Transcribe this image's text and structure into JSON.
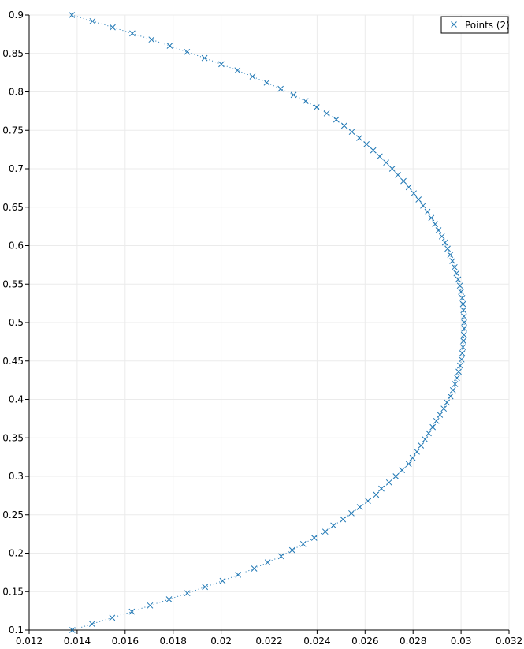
{
  "chart_data": {
    "type": "scatter",
    "grid": true,
    "legend_position": "top-right",
    "xlim": [
      0.012,
      0.032
    ],
    "ylim": [
      0.1,
      0.9
    ],
    "x_ticks": [
      "0.012",
      "0.014",
      "0.016",
      "0.018",
      "0.02",
      "0.022",
      "0.024",
      "0.026",
      "0.028",
      "0.03",
      "0.032"
    ],
    "y_ticks": [
      "0.1",
      "0.15",
      "0.2",
      "0.25",
      "0.3",
      "0.35",
      "0.4",
      "0.45",
      "0.5",
      "0.55",
      "0.6",
      "0.65",
      "0.7",
      "0.75",
      "0.8",
      "0.85",
      "0.9"
    ],
    "series": [
      {
        "name": "Points (2)",
        "color": "#1f77b4",
        "marker": "x",
        "points": [
          [
            0.0138,
            0.1
          ],
          [
            0.01462,
            0.108
          ],
          [
            0.01546,
            0.116
          ],
          [
            0.01628,
            0.124
          ],
          [
            0.01704,
            0.132
          ],
          [
            0.01783,
            0.14
          ],
          [
            0.01859,
            0.148
          ],
          [
            0.01933,
            0.156
          ],
          [
            0.02006,
            0.164
          ],
          [
            0.02071,
            0.172
          ],
          [
            0.02138,
            0.18
          ],
          [
            0.02194,
            0.188
          ],
          [
            0.0225,
            0.196
          ],
          [
            0.02296,
            0.204
          ],
          [
            0.02342,
            0.212
          ],
          [
            0.02388,
            0.22
          ],
          [
            0.02434,
            0.228
          ],
          [
            0.02468,
            0.236
          ],
          [
            0.02508,
            0.244
          ],
          [
            0.02543,
            0.252
          ],
          [
            0.02578,
            0.26
          ],
          [
            0.02612,
            0.268
          ],
          [
            0.02646,
            0.276
          ],
          [
            0.02668,
            0.284
          ],
          [
            0.027,
            0.292
          ],
          [
            0.02728,
            0.3
          ],
          [
            0.02754,
            0.308
          ],
          [
            0.02782,
            0.316
          ],
          [
            0.02798,
            0.324
          ],
          [
            0.02816,
            0.332
          ],
          [
            0.02833,
            0.34
          ],
          [
            0.0285,
            0.348
          ],
          [
            0.02865,
            0.356
          ],
          [
            0.02882,
            0.364
          ],
          [
            0.02897,
            0.372
          ],
          [
            0.02912,
            0.38
          ],
          [
            0.02928,
            0.388
          ],
          [
            0.02941,
            0.396
          ],
          [
            0.02956,
            0.404
          ],
          [
            0.02966,
            0.412
          ],
          [
            0.02975,
            0.42
          ],
          [
            0.02983,
            0.428
          ],
          [
            0.0299,
            0.436
          ],
          [
            0.02996,
            0.444
          ],
          [
            0.03002,
            0.452
          ],
          [
            0.03005,
            0.46
          ],
          [
            0.03008,
            0.468
          ],
          [
            0.0301,
            0.476
          ],
          [
            0.03012,
            0.484
          ],
          [
            0.03013,
            0.492
          ],
          [
            0.03013,
            0.5
          ],
          [
            0.03012,
            0.508
          ],
          [
            0.0301,
            0.516
          ],
          [
            0.03008,
            0.524
          ],
          [
            0.03005,
            0.532
          ],
          [
            0.03,
            0.54
          ],
          [
            0.02995,
            0.548
          ],
          [
            0.02988,
            0.556
          ],
          [
            0.02981,
            0.564
          ],
          [
            0.02973,
            0.572
          ],
          [
            0.02964,
            0.58
          ],
          [
            0.02955,
            0.588
          ],
          [
            0.02944,
            0.596
          ],
          [
            0.02933,
            0.604
          ],
          [
            0.0292,
            0.612
          ],
          [
            0.02906,
            0.62
          ],
          [
            0.02892,
            0.628
          ],
          [
            0.02876,
            0.636
          ],
          [
            0.0286,
            0.644
          ],
          [
            0.02842,
            0.652
          ],
          [
            0.02823,
            0.66
          ],
          [
            0.02803,
            0.668
          ],
          [
            0.02782,
            0.676
          ],
          [
            0.0276,
            0.684
          ],
          [
            0.02737,
            0.692
          ],
          [
            0.02713,
            0.7
          ],
          [
            0.02688,
            0.708
          ],
          [
            0.02661,
            0.716
          ],
          [
            0.02634,
            0.724
          ],
          [
            0.02606,
            0.732
          ],
          [
            0.02576,
            0.74
          ],
          [
            0.02545,
            0.748
          ],
          [
            0.02513,
            0.756
          ],
          [
            0.0248,
            0.764
          ],
          [
            0.0244,
            0.772
          ],
          [
            0.02398,
            0.78
          ],
          [
            0.02352,
            0.788
          ],
          [
            0.02302,
            0.796
          ],
          [
            0.02248,
            0.804
          ],
          [
            0.0219,
            0.812
          ],
          [
            0.02131,
            0.82
          ],
          [
            0.02068,
            0.828
          ],
          [
            0.02001,
            0.836
          ],
          [
            0.01931,
            0.844
          ],
          [
            0.01858,
            0.852
          ],
          [
            0.01786,
            0.86
          ],
          [
            0.0171,
            0.868
          ],
          [
            0.0163,
            0.876
          ],
          [
            0.01548,
            0.884
          ],
          [
            0.01464,
            0.892
          ],
          [
            0.01378,
            0.9
          ]
        ]
      }
    ]
  }
}
